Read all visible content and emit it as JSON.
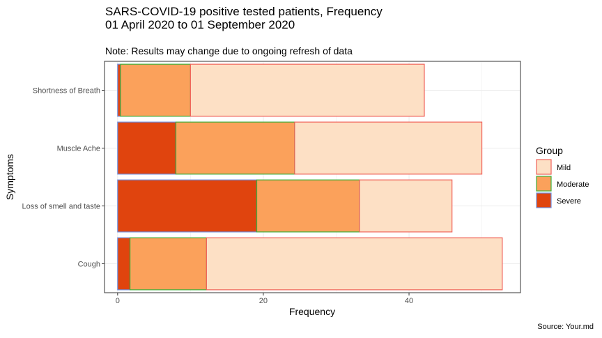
{
  "chart_data": {
    "type": "bar",
    "orientation": "horizontal",
    "stacked": true,
    "title_lines": [
      "SARS-COVID-19 positive tested patients, Frequency",
      "01 April 2020 to 01 September 2020"
    ],
    "subtitle": "Note: Results may change due to ongoing refresh of data",
    "caption": "Source: Your.md",
    "xlabel": "Frequency",
    "ylabel": "Symptoms",
    "xlim": [
      -1.8,
      55.3
    ],
    "xticks": [
      0,
      20,
      40
    ],
    "grid": true,
    "legend_position": "right",
    "legend_title": "Group",
    "categories": [
      "Shortness of Breath",
      "Muscle Ache",
      "Loss of smell and taste",
      "Cough"
    ],
    "series": [
      {
        "name": "Severe",
        "values": [
          0.4,
          8.0,
          19.1,
          1.7
        ],
        "fill": "#e0440e",
        "stroke": "#6f8fe0"
      },
      {
        "name": "Moderate",
        "values": [
          9.6,
          16.3,
          14.1,
          10.5
        ],
        "fill": "#fba15b",
        "stroke": "#3caf3c"
      },
      {
        "name": "Mild",
        "values": [
          32.1,
          25.7,
          12.7,
          40.6
        ],
        "fill": "#fde0c5",
        "stroke": "#f0625a"
      }
    ],
    "legend_order": [
      "Mild",
      "Moderate",
      "Severe"
    ]
  }
}
